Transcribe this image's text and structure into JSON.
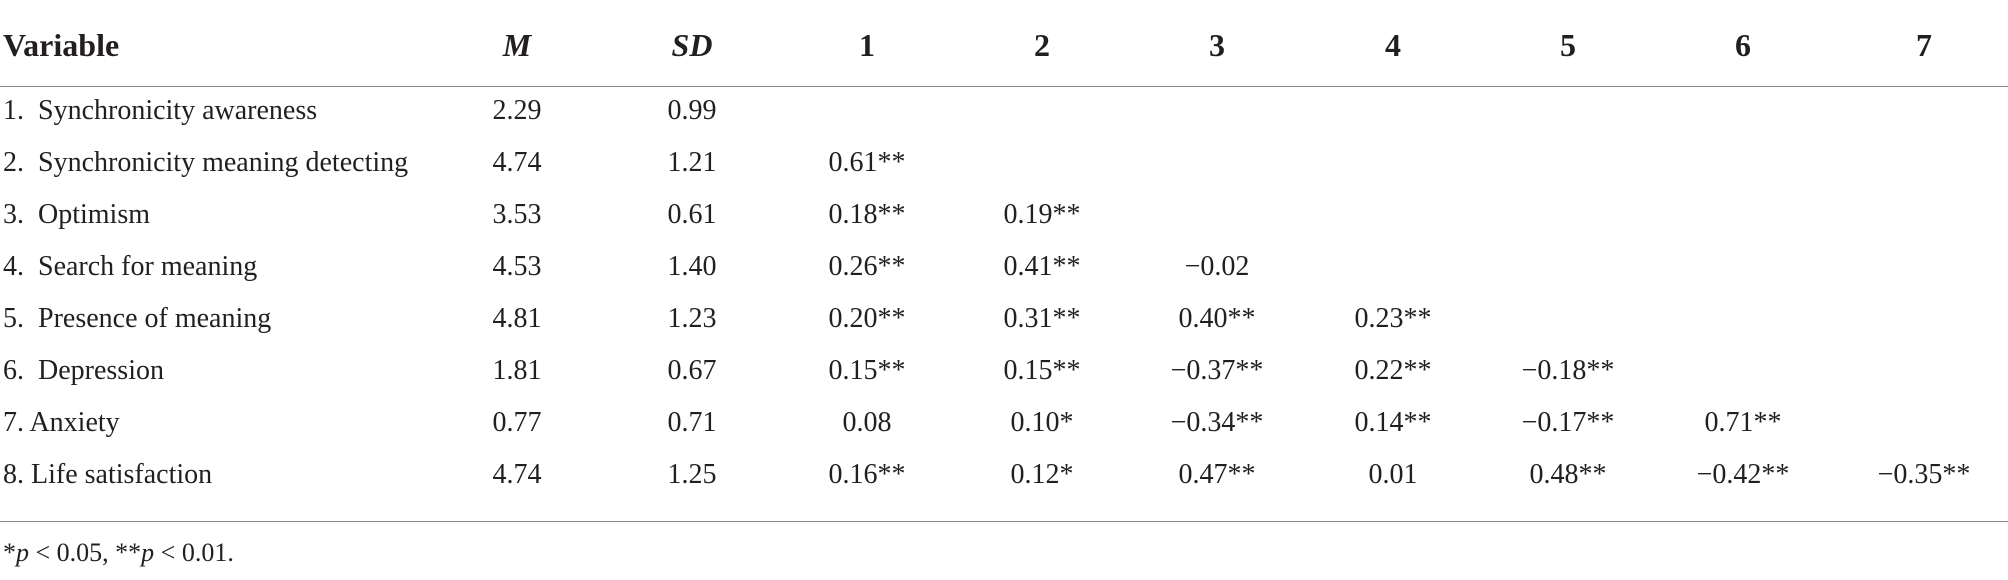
{
  "table": {
    "header": [
      "Variable",
      "M",
      "SD",
      "1",
      "2",
      "3",
      "4",
      "5",
      "6",
      "7"
    ],
    "rows": [
      [
        "1.  Synchronicity awareness",
        "2.29",
        "0.99"
      ],
      [
        "2.  Synchronicity meaning detecting",
        "4.74",
        "1.21",
        "0.61**"
      ],
      [
        "3.  Optimism",
        "3.53",
        "0.61",
        "0.18**",
        "0.19**"
      ],
      [
        "4.  Search for meaning",
        "4.53",
        "1.40",
        "0.26**",
        "0.41**",
        "−0.02"
      ],
      [
        "5.  Presence of meaning",
        "4.81",
        "1.23",
        "0.20**",
        "0.31**",
        "0.40**",
        "0.23**"
      ],
      [
        "6.  Depression",
        "1.81",
        "0.67",
        "0.15**",
        "0.15**",
        "−0.37**",
        "0.22**",
        "−0.18**"
      ],
      [
        "7. Anxiety",
        "0.77",
        "0.71",
        "0.08",
        "0.10*",
        "−0.34**",
        "0.14**",
        "−0.17**",
        "0.71**"
      ],
      [
        "8. Life satisfaction",
        "4.74",
        "1.25",
        "0.16**",
        "0.12*",
        "0.47**",
        "0.01",
        "0.48**",
        "−0.42**",
        "−0.35**"
      ]
    ]
  },
  "note": [
    "*",
    "p",
    " < 0.05, **",
    "p",
    " < 0.01."
  ]
}
